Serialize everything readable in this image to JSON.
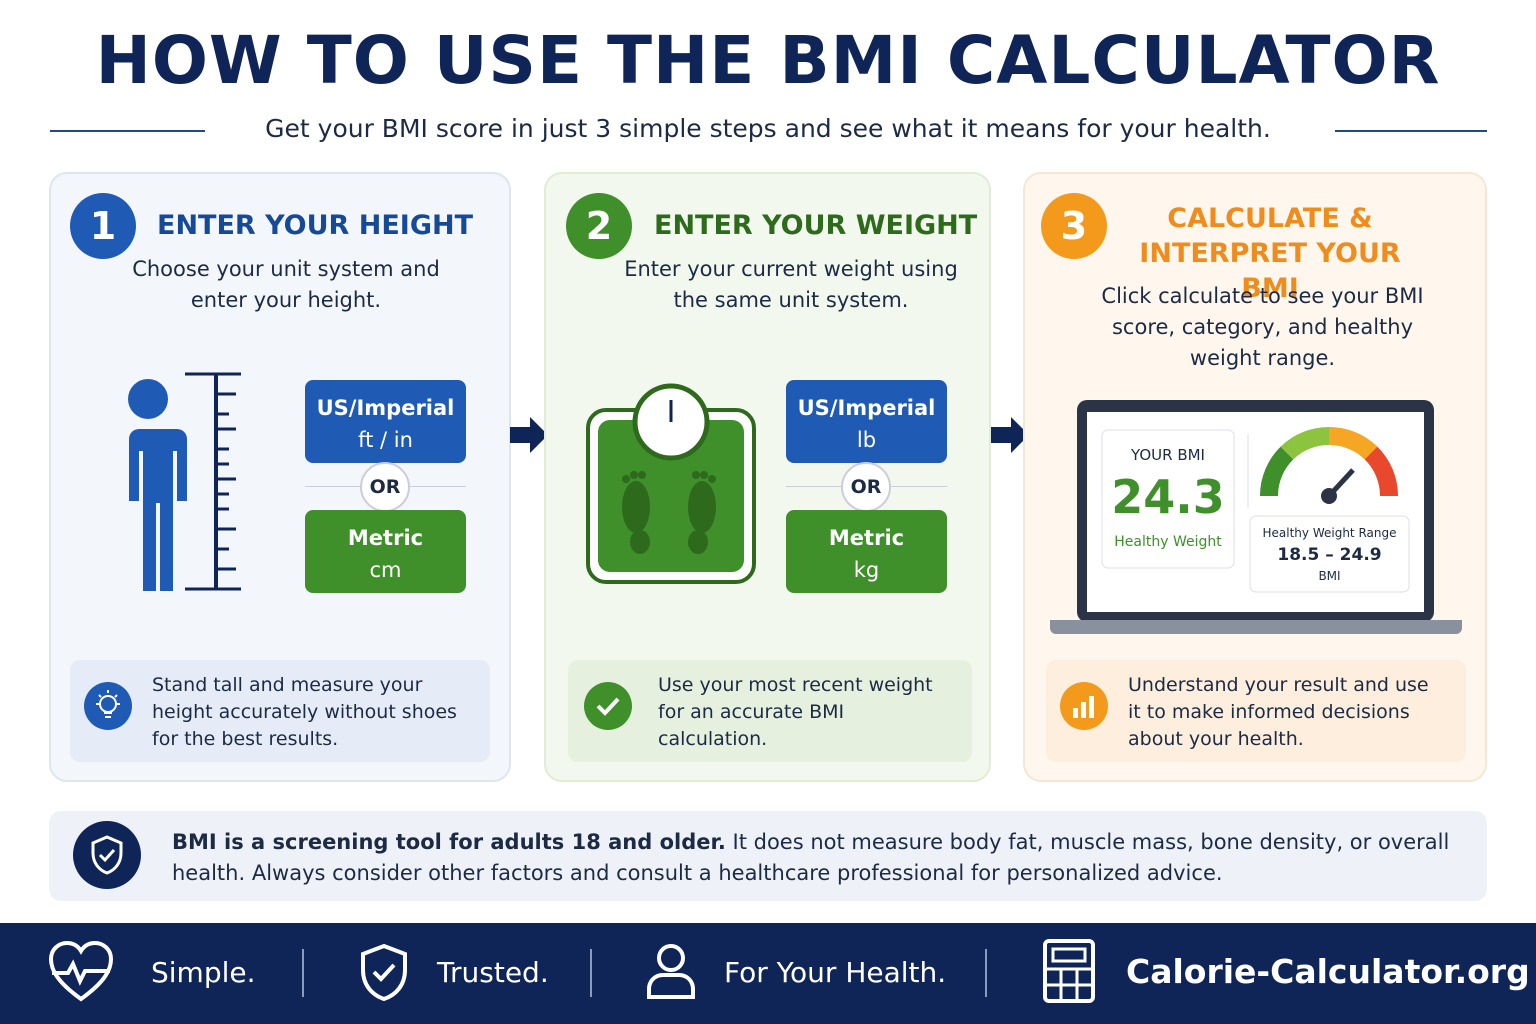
{
  "header": {
    "title": "HOW TO USE THE BMI CALCULATOR",
    "subtitle": "Get your BMI score in just 3 simple steps and see what it means for your health."
  },
  "steps": [
    {
      "number": "1",
      "title": "ENTER YOUR HEIGHT",
      "description": "Choose your unit system and enter your height.",
      "options": [
        {
          "label": "US/Imperial",
          "unit": "ft / in"
        },
        {
          "label": "Metric",
          "unit": "cm"
        }
      ],
      "separator": "OR",
      "tip": "Stand tall and measure your height accurately without shoes for the best results."
    },
    {
      "number": "2",
      "title": "ENTER YOUR WEIGHT",
      "description": "Enter your current weight using the same unit system.",
      "options": [
        {
          "label": "US/Imperial",
          "unit": "lb"
        },
        {
          "label": "Metric",
          "unit": "kg"
        }
      ],
      "separator": "OR",
      "tip": "Use your most recent weight for an accurate BMI calculation."
    },
    {
      "number": "3",
      "title": "CALCULATE & INTERPRET YOUR BMI",
      "description": "Click calculate to see your BMI score, category, and healthy weight range.",
      "result": {
        "label": "YOUR BMI",
        "value": "24.3",
        "category": "Healthy Weight",
        "range_label": "Healthy Weight Range",
        "range": "18.5 – 24.9",
        "range_unit": "BMI"
      },
      "tip": "Understand your result and use it to make informed decisions about your health."
    }
  ],
  "note": {
    "bold": "BMI is a screening tool for adults 18 and older.",
    "text": "It does not measure body fat, muscle mass, bone density, or overall health. Always consider other factors and consult a healthcare professional for personalized advice."
  },
  "footer": {
    "items": [
      "Simple.",
      "Trusted.",
      "For Your Health."
    ],
    "brand": "Calorie-Calculator.org"
  }
}
